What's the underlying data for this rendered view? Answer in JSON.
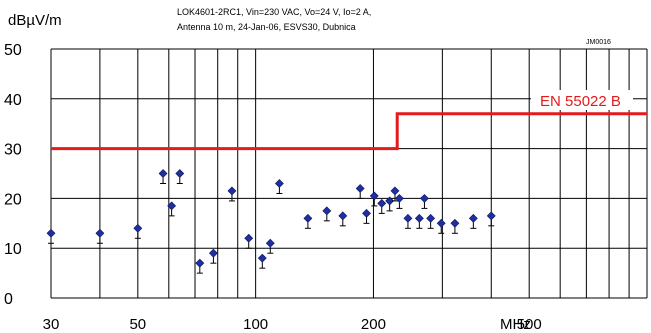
{
  "chart_data": {
    "type": "scatter",
    "title_lines": [
      "LOK4601-2RC1, Vin=230 VAC, Vo=24 V, Io=2 A,",
      "Antenna 10 m, 24-Jan-06, ESVS30, Dubnica"
    ],
    "reference_code": "JM0016",
    "ylabel": "dBµV/m",
    "xlabel": "MHz",
    "x_scale": "log",
    "xlim": [
      30,
      1000
    ],
    "ylim": [
      0,
      50
    ],
    "y_ticks": [
      0,
      10,
      20,
      30,
      40,
      50
    ],
    "x_tick_labels": [
      30,
      50,
      100,
      200,
      500
    ],
    "x_gridlines": [
      30,
      40,
      50,
      60,
      70,
      80,
      90,
      100,
      200,
      300,
      400,
      500,
      600,
      700,
      800,
      900,
      1000
    ],
    "limit_line": {
      "name": "EN 55022 B",
      "color": "#e31b1b",
      "segments": [
        {
          "x": [
            30,
            230
          ],
          "y": 30
        },
        {
          "x": [
            230,
            1000
          ],
          "y": 37
        }
      ]
    },
    "marker_color": "#1f2fa0",
    "points": [
      {
        "x": 30,
        "y": 13
      },
      {
        "x": 40,
        "y": 13
      },
      {
        "x": 50,
        "y": 14
      },
      {
        "x": 58,
        "y": 25
      },
      {
        "x": 61,
        "y": 18.5
      },
      {
        "x": 64,
        "y": 25
      },
      {
        "x": 72,
        "y": 7
      },
      {
        "x": 78,
        "y": 9
      },
      {
        "x": 87,
        "y": 21.5
      },
      {
        "x": 96,
        "y": 12
      },
      {
        "x": 104,
        "y": 8
      },
      {
        "x": 109,
        "y": 11
      },
      {
        "x": 115,
        "y": 23
      },
      {
        "x": 136,
        "y": 16
      },
      {
        "x": 152,
        "y": 17.5
      },
      {
        "x": 167,
        "y": 16.5
      },
      {
        "x": 185,
        "y": 22
      },
      {
        "x": 192,
        "y": 17
      },
      {
        "x": 201,
        "y": 20.5
      },
      {
        "x": 210,
        "y": 19
      },
      {
        "x": 220,
        "y": 19.5
      },
      {
        "x": 227,
        "y": 21.5
      },
      {
        "x": 233,
        "y": 20
      },
      {
        "x": 245,
        "y": 16
      },
      {
        "x": 262,
        "y": 16
      },
      {
        "x": 270,
        "y": 20
      },
      {
        "x": 280,
        "y": 16
      },
      {
        "x": 298,
        "y": 15
      },
      {
        "x": 323,
        "y": 15
      },
      {
        "x": 360,
        "y": 16
      },
      {
        "x": 400,
        "y": 16.5
      }
    ]
  }
}
